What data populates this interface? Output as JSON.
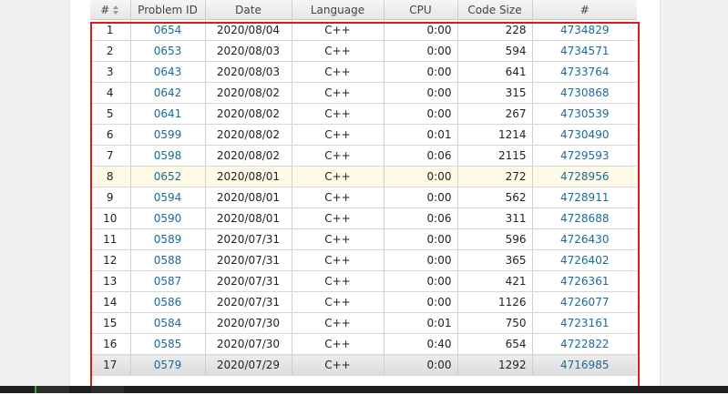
{
  "table": {
    "headers": {
      "num": "#",
      "problem_id": "Problem ID",
      "date": "Date",
      "language": "Language",
      "cpu": "CPU",
      "code_size": "Code Size",
      "run_id": "#"
    },
    "rows": [
      {
        "num": "1",
        "problem_id": "0654",
        "date": "2020/08/04",
        "language": "C++",
        "cpu": "0:00",
        "code_size": "228",
        "run_id": "4734829"
      },
      {
        "num": "2",
        "problem_id": "0653",
        "date": "2020/08/03",
        "language": "C++",
        "cpu": "0:00",
        "code_size": "594",
        "run_id": "4734571"
      },
      {
        "num": "3",
        "problem_id": "0643",
        "date": "2020/08/03",
        "language": "C++",
        "cpu": "0:00",
        "code_size": "641",
        "run_id": "4733764"
      },
      {
        "num": "4",
        "problem_id": "0642",
        "date": "2020/08/02",
        "language": "C++",
        "cpu": "0:00",
        "code_size": "315",
        "run_id": "4730868"
      },
      {
        "num": "5",
        "problem_id": "0641",
        "date": "2020/08/02",
        "language": "C++",
        "cpu": "0:00",
        "code_size": "267",
        "run_id": "4730539"
      },
      {
        "num": "6",
        "problem_id": "0599",
        "date": "2020/08/02",
        "language": "C++",
        "cpu": "0:01",
        "code_size": "1214",
        "run_id": "4730490"
      },
      {
        "num": "7",
        "problem_id": "0598",
        "date": "2020/08/02",
        "language": "C++",
        "cpu": "0:06",
        "code_size": "2115",
        "run_id": "4729593"
      },
      {
        "num": "8",
        "problem_id": "0652",
        "date": "2020/08/01",
        "language": "C++",
        "cpu": "0:00",
        "code_size": "272",
        "run_id": "4728956"
      },
      {
        "num": "9",
        "problem_id": "0594",
        "date": "2020/08/01",
        "language": "C++",
        "cpu": "0:00",
        "code_size": "562",
        "run_id": "4728911"
      },
      {
        "num": "10",
        "problem_id": "0590",
        "date": "2020/08/01",
        "language": "C++",
        "cpu": "0:06",
        "code_size": "311",
        "run_id": "4728688"
      },
      {
        "num": "11",
        "problem_id": "0589",
        "date": "2020/07/31",
        "language": "C++",
        "cpu": "0:00",
        "code_size": "596",
        "run_id": "4726430"
      },
      {
        "num": "12",
        "problem_id": "0588",
        "date": "2020/07/31",
        "language": "C++",
        "cpu": "0:00",
        "code_size": "365",
        "run_id": "4726402"
      },
      {
        "num": "13",
        "problem_id": "0587",
        "date": "2020/07/31",
        "language": "C++",
        "cpu": "0:00",
        "code_size": "421",
        "run_id": "4726361"
      },
      {
        "num": "14",
        "problem_id": "0586",
        "date": "2020/07/31",
        "language": "C++",
        "cpu": "0:00",
        "code_size": "1126",
        "run_id": "4726077"
      },
      {
        "num": "15",
        "problem_id": "0584",
        "date": "2020/07/30",
        "language": "C++",
        "cpu": "0:01",
        "code_size": "750",
        "run_id": "4723161"
      },
      {
        "num": "16",
        "problem_id": "0585",
        "date": "2020/07/30",
        "language": "C++",
        "cpu": "0:40",
        "code_size": "654",
        "run_id": "4722822"
      },
      {
        "num": "17",
        "problem_id": "0579",
        "date": "2020/07/29",
        "language": "C++",
        "cpu": "0:00",
        "code_size": "1292",
        "run_id": "4716985"
      }
    ],
    "highlighted_row": 8,
    "colors": {
      "link": "#1a6b96",
      "highlight_row": "#fffbe6",
      "selection_frame": "#e01818"
    }
  }
}
